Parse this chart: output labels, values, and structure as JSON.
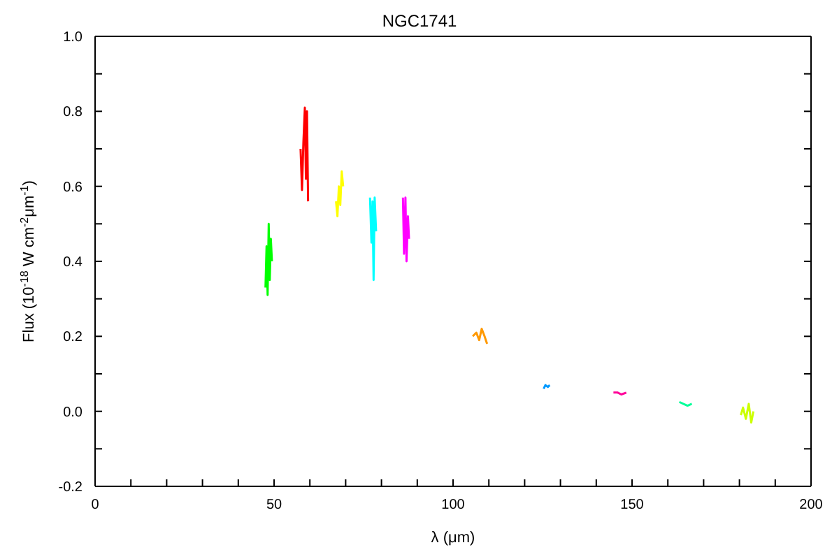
{
  "chart_data": {
    "type": "line",
    "title": "NGC1741",
    "xlabel": "λ (μm)",
    "ylabel": "Flux (10$^{-18}$ W cm$^{-2}$μm$^{-1}$)",
    "xlim": [
      0,
      200
    ],
    "ylim": [
      -0.2,
      1.0
    ],
    "xticks": [
      0,
      {
        "value": 10,
        "label": null
      },
      {
        "value": 20,
        "label": null
      },
      {
        "value": 30,
        "label": null
      },
      {
        "value": 40,
        "label": null
      },
      50,
      {
        "value": 60,
        "label": null
      },
      {
        "value": 70,
        "label": null
      },
      {
        "value": 80,
        "label": null
      },
      {
        "value": 90,
        "label": null
      },
      100,
      {
        "value": 110,
        "label": null
      },
      {
        "value": 120,
        "label": null
      },
      {
        "value": 130,
        "label": null
      },
      {
        "value": 140,
        "label": null
      },
      150,
      {
        "value": 160,
        "label": null
      },
      {
        "value": 170,
        "label": null
      },
      {
        "value": 180,
        "label": null
      },
      {
        "value": 190,
        "label": null
      },
      200
    ],
    "yticks": [
      {
        "value": -0.2,
        "label": "-0.2"
      },
      {
        "value": -0.1,
        "label": null
      },
      {
        "value": 0,
        "label": "0.0"
      },
      {
        "value": 0.1,
        "label": null
      },
      {
        "value": 0.2,
        "label": "0.2"
      },
      {
        "value": 0.3,
        "label": null
      },
      {
        "value": 0.4,
        "label": "0.4"
      },
      {
        "value": 0.5,
        "label": null
      },
      {
        "value": 0.6,
        "label": "0.6"
      },
      {
        "value": 0.7,
        "label": null
      },
      {
        "value": 0.8,
        "label": "0.8"
      },
      {
        "value": 0.9,
        "label": null
      },
      {
        "value": 1.0,
        "label": "1.0"
      }
    ],
    "grid": false,
    "series": [
      {
        "color": "#00ff00",
        "x": [
          47.6,
          47.9,
          48.2,
          48.5,
          48.8,
          49.1,
          49.4
        ],
        "values": [
          0.33,
          0.44,
          0.31,
          0.5,
          0.35,
          0.46,
          0.4
        ]
      },
      {
        "color": "#ff0000",
        "x": [
          57.4,
          57.8,
          58.2,
          58.6,
          58.9,
          59.2,
          59.5
        ],
        "values": [
          0.7,
          0.59,
          0.72,
          0.81,
          0.62,
          0.8,
          0.56
        ]
      },
      {
        "color": "#ffff00",
        "x": [
          67.3,
          67.7,
          68.1,
          68.5,
          68.9,
          69.3
        ],
        "values": [
          0.56,
          0.52,
          0.6,
          0.55,
          0.64,
          0.6
        ]
      },
      {
        "color": "#00ffff",
        "x": [
          76.8,
          77.2,
          77.5,
          77.8,
          78.1,
          78.5
        ],
        "values": [
          0.57,
          0.45,
          0.56,
          0.35,
          0.57,
          0.48
        ]
      },
      {
        "color": "#ff00ff",
        "x": [
          86.0,
          86.3,
          86.7,
          87.0,
          87.4,
          87.7
        ],
        "values": [
          0.57,
          0.42,
          0.57,
          0.4,
          0.52,
          0.46
        ]
      },
      {
        "color": "#ff9900",
        "x": [
          105.5,
          106.5,
          107.3,
          108.0,
          108.8,
          109.5
        ],
        "values": [
          0.2,
          0.21,
          0.19,
          0.22,
          0.2,
          0.18
        ]
      },
      {
        "color": "#0099ff",
        "x": [
          125.3,
          125.8,
          126.5,
          127.0
        ],
        "values": [
          0.06,
          0.07,
          0.065,
          0.07
        ]
      },
      {
        "color": "#ff0099",
        "x": [
          144.8,
          146.0,
          147.0,
          148.4
        ],
        "values": [
          0.05,
          0.05,
          0.045,
          0.05
        ]
      },
      {
        "color": "#00ff99",
        "x": [
          163.2,
          164.3,
          165.5,
          166.7
        ],
        "values": [
          0.025,
          0.02,
          0.015,
          0.02
        ]
      },
      {
        "color": "#ccff00",
        "x": [
          180.4,
          181.0,
          181.8,
          182.6,
          183.3,
          183.9
        ],
        "values": [
          -0.01,
          0.01,
          -0.02,
          0.02,
          -0.03,
          0.0
        ]
      }
    ]
  }
}
